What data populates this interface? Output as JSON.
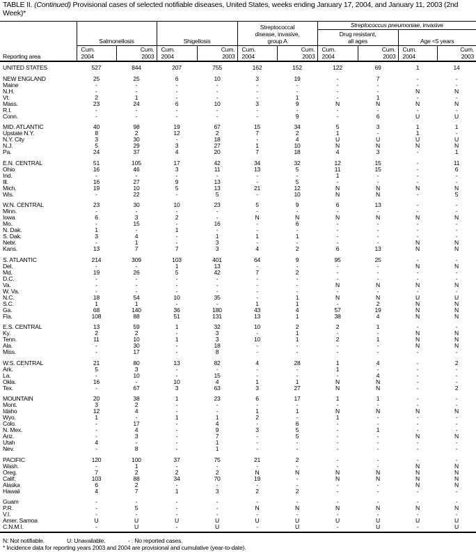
{
  "title": {
    "prefix": "TABLE II. ",
    "continued": "(Continued)",
    "text": " Provisional cases of selected notifiable diseases, United States, weeks ending January 17, 2004, and January 11, 2003 (2nd Week)*"
  },
  "header": {
    "reporting_area": "Reporting area",
    "salmonellosis": "Salmonellosis",
    "shigellosis": "Shigellosis",
    "strep_a": "Streptococcal disease, invasive, group A",
    "strep_pneumoniae": "Streptococcus pneumoniae",
    "strep_pneumoniae_suffix": ", invasive",
    "drug_resistant": "Drug resistant, all ages",
    "age_lt5": "Age <5 years",
    "cum_2004": "Cum. 2004",
    "cum_2003": "Cum. 2003"
  },
  "rows": [
    {
      "area": "UNITED STATES",
      "values": [
        "527",
        "844",
        "207",
        "755",
        "162",
        "152",
        "122",
        "69",
        "1",
        "14"
      ],
      "region": true
    },
    {
      "area": "NEW ENGLAND",
      "values": [
        "25",
        "25",
        "6",
        "10",
        "3",
        "19",
        "-",
        "7",
        "-",
        "-"
      ],
      "region": true
    },
    {
      "area": "Maine",
      "values": [
        "-",
        "-",
        "-",
        "-",
        "-",
        "-",
        "-",
        "-",
        "-",
        "-"
      ]
    },
    {
      "area": "N.H.",
      "values": [
        "-",
        "-",
        "-",
        "-",
        "-",
        "-",
        "-",
        "-",
        "N",
        "N"
      ]
    },
    {
      "area": "Vt.",
      "values": [
        "2",
        "1",
        "-",
        "-",
        "-",
        "1",
        "-",
        "1",
        "-",
        "-"
      ]
    },
    {
      "area": "Mass.",
      "values": [
        "23",
        "24",
        "6",
        "10",
        "3",
        "9",
        "N",
        "N",
        "N",
        "N"
      ]
    },
    {
      "area": "R.I.",
      "values": [
        "-",
        "-",
        "-",
        "-",
        "-",
        "-",
        "-",
        "-",
        "-",
        "-"
      ]
    },
    {
      "area": "Conn.",
      "values": [
        "-",
        "-",
        "-",
        "-",
        "-",
        "9",
        "-",
        "6",
        "U",
        "U"
      ]
    },
    {
      "area": "MID. ATLANTIC",
      "values": [
        "40",
        "98",
        "19",
        "67",
        "15",
        "34",
        "5",
        "3",
        "1",
        "1"
      ],
      "region": true
    },
    {
      "area": "Upstate N.Y.",
      "values": [
        "8",
        "2",
        "12",
        "2",
        "7",
        "2",
        "1",
        "-",
        "1",
        "-"
      ]
    },
    {
      "area": "N.Y. City",
      "values": [
        "3",
        "30",
        "-",
        "18",
        "-",
        "4",
        "U",
        "U",
        "U",
        "U"
      ]
    },
    {
      "area": "N.J.",
      "values": [
        "5",
        "29",
        "3",
        "27",
        "1",
        "10",
        "N",
        "N",
        "N",
        "N"
      ]
    },
    {
      "area": "Pa.",
      "values": [
        "24",
        "37",
        "4",
        "20",
        "7",
        "18",
        "4",
        "3",
        "-",
        "1"
      ]
    },
    {
      "area": "E.N. CENTRAL",
      "values": [
        "51",
        "105",
        "17",
        "42",
        "34",
        "32",
        "12",
        "15",
        "-",
        "11"
      ],
      "region": true
    },
    {
      "area": "Ohio",
      "values": [
        "16",
        "46",
        "3",
        "11",
        "13",
        "5",
        "11",
        "15",
        "-",
        "6"
      ]
    },
    {
      "area": "Ind.",
      "values": [
        "-",
        "-",
        "-",
        "-",
        "-",
        "-",
        "1",
        "-",
        "-",
        "-"
      ]
    },
    {
      "area": "Ill.",
      "values": [
        "16",
        "27",
        "9",
        "13",
        "-",
        "5",
        "-",
        "-",
        "-",
        "-"
      ]
    },
    {
      "area": "Mich.",
      "values": [
        "19",
        "10",
        "5",
        "13",
        "21",
        "12",
        "N",
        "N",
        "N",
        "N"
      ]
    },
    {
      "area": "Wis.",
      "values": [
        "-",
        "22",
        "-",
        "5",
        "-",
        "10",
        "N",
        "N",
        "-",
        "5"
      ]
    },
    {
      "area": "W.N. CENTRAL",
      "values": [
        "23",
        "30",
        "10",
        "23",
        "5",
        "9",
        "6",
        "13",
        "-",
        "-"
      ],
      "region": true
    },
    {
      "area": "Minn.",
      "values": [
        "-",
        "-",
        "-",
        "-",
        "-",
        "-",
        "-",
        "-",
        "-",
        "-"
      ]
    },
    {
      "area": "Iowa",
      "values": [
        "6",
        "3",
        "2",
        "-",
        "N",
        "N",
        "N",
        "N",
        "N",
        "N"
      ]
    },
    {
      "area": "Mo.",
      "values": [
        "-",
        "15",
        "-",
        "16",
        "-",
        "6",
        "-",
        "-",
        "-",
        "-"
      ]
    },
    {
      "area": "N. Dak.",
      "values": [
        "1",
        "-",
        "1",
        "-",
        "-",
        "-",
        "-",
        "-",
        "-",
        "-"
      ]
    },
    {
      "area": "S. Dak.",
      "values": [
        "3",
        "4",
        "-",
        "1",
        "1",
        "1",
        "-",
        "-",
        "-",
        "-"
      ]
    },
    {
      "area": "Nebr.",
      "values": [
        "-",
        "1",
        "-",
        "3",
        "-",
        "-",
        "-",
        "-",
        "N",
        "N"
      ]
    },
    {
      "area": "Kans.",
      "values": [
        "13",
        "7",
        "7",
        "3",
        "4",
        "2",
        "6",
        "13",
        "N",
        "N"
      ]
    },
    {
      "area": "S. ATLANTIC",
      "values": [
        "214",
        "309",
        "103",
        "401",
        "64",
        "9",
        "95",
        "25",
        "-",
        "-"
      ],
      "region": true
    },
    {
      "area": "Del.",
      "values": [
        "-",
        "-",
        "1",
        "13",
        "-",
        "-",
        "-",
        "-",
        "N",
        "N"
      ]
    },
    {
      "area": "Md.",
      "values": [
        "19",
        "26",
        "5",
        "42",
        "7",
        "2",
        "-",
        "-",
        "-",
        "-"
      ]
    },
    {
      "area": "D.C.",
      "values": [
        "-",
        "-",
        "-",
        "-",
        "-",
        "-",
        "-",
        "-",
        "-",
        "-"
      ]
    },
    {
      "area": "Va.",
      "values": [
        "-",
        "-",
        "-",
        "-",
        "-",
        "-",
        "N",
        "N",
        "N",
        "N"
      ]
    },
    {
      "area": "W. Va.",
      "values": [
        "-",
        "-",
        "-",
        "-",
        "-",
        "-",
        "-",
        "-",
        "-",
        "-"
      ]
    },
    {
      "area": "N.C.",
      "values": [
        "18",
        "54",
        "10",
        "35",
        "-",
        "1",
        "N",
        "N",
        "U",
        "U"
      ]
    },
    {
      "area": "S.C.",
      "values": [
        "1",
        "1",
        "-",
        "-",
        "1",
        "1",
        "-",
        "2",
        "N",
        "N"
      ]
    },
    {
      "area": "Ga.",
      "values": [
        "68",
        "140",
        "36",
        "180",
        "43",
        "4",
        "57",
        "19",
        "N",
        "N"
      ]
    },
    {
      "area": "Fla.",
      "values": [
        "108",
        "88",
        "51",
        "131",
        "13",
        "1",
        "38",
        "4",
        "N",
        "N"
      ]
    },
    {
      "area": "E.S. CENTRAL",
      "values": [
        "13",
        "59",
        "1",
        "32",
        "10",
        "2",
        "2",
        "1",
        "-",
        "-"
      ],
      "region": true
    },
    {
      "area": "Ky.",
      "values": [
        "2",
        "2",
        "-",
        "3",
        "-",
        "1",
        "-",
        "-",
        "N",
        "N"
      ]
    },
    {
      "area": "Tenn.",
      "values": [
        "11",
        "10",
        "1",
        "3",
        "10",
        "1",
        "2",
        "1",
        "N",
        "N"
      ]
    },
    {
      "area": "Ala.",
      "values": [
        "-",
        "30",
        "-",
        "18",
        "-",
        "-",
        "-",
        "-",
        "N",
        "N"
      ]
    },
    {
      "area": "Miss.",
      "values": [
        "-",
        "17",
        "-",
        "8",
        "-",
        "-",
        "-",
        "-",
        "-",
        "-"
      ]
    },
    {
      "area": "W.S. CENTRAL",
      "values": [
        "21",
        "80",
        "13",
        "82",
        "4",
        "28",
        "1",
        "4",
        "-",
        "2"
      ],
      "region": true
    },
    {
      "area": "Ark.",
      "values": [
        "5",
        "3",
        "-",
        "-",
        "-",
        "-",
        "1",
        "-",
        "-",
        "-"
      ]
    },
    {
      "area": "La.",
      "values": [
        "-",
        "10",
        "-",
        "15",
        "-",
        "-",
        "-",
        "4",
        "-",
        "-"
      ]
    },
    {
      "area": "Okla.",
      "values": [
        "16",
        "-",
        "10",
        "4",
        "1",
        "1",
        "N",
        "N",
        "-",
        "-"
      ]
    },
    {
      "area": "Tex.",
      "values": [
        "-",
        "67",
        "3",
        "63",
        "3",
        "27",
        "N",
        "N",
        "-",
        "2"
      ]
    },
    {
      "area": "MOUNTAIN",
      "values": [
        "20",
        "38",
        "1",
        "23",
        "6",
        "17",
        "1",
        "1",
        "-",
        "-"
      ],
      "region": true
    },
    {
      "area": "Mont.",
      "values": [
        "3",
        "2",
        "-",
        "-",
        "-",
        "-",
        "-",
        "-",
        "-",
        "-"
      ]
    },
    {
      "area": "Idaho",
      "values": [
        "12",
        "4",
        "-",
        "-",
        "1",
        "1",
        "N",
        "N",
        "N",
        "N"
      ]
    },
    {
      "area": "Wyo.",
      "values": [
        "1",
        "-",
        "1",
        "1",
        "2",
        "-",
        "1",
        "-",
        "-",
        "-"
      ]
    },
    {
      "area": "Colo.",
      "values": [
        "-",
        "17",
        "-",
        "4",
        "-",
        "6",
        "-",
        "-",
        "-",
        "-"
      ]
    },
    {
      "area": "N. Mex.",
      "values": [
        "-",
        "4",
        "-",
        "9",
        "3",
        "5",
        "-",
        "1",
        "-",
        "-"
      ]
    },
    {
      "area": "Ariz.",
      "values": [
        "-",
        "3",
        "-",
        "7",
        "-",
        "5",
        "-",
        "-",
        "N",
        "N"
      ]
    },
    {
      "area": "Utah",
      "values": [
        "4",
        "-",
        "-",
        "1",
        "-",
        "-",
        "-",
        "-",
        "-",
        "-"
      ]
    },
    {
      "area": "Nev.",
      "values": [
        "-",
        "8",
        "-",
        "1",
        "-",
        "-",
        "-",
        "-",
        "-",
        "-"
      ]
    },
    {
      "area": "PACIFIC",
      "values": [
        "120",
        "100",
        "37",
        "75",
        "21",
        "2",
        "-",
        "-",
        "-",
        "-"
      ],
      "region": true
    },
    {
      "area": "Wash.",
      "values": [
        "-",
        "1",
        "-",
        "-",
        "-",
        "-",
        "-",
        "-",
        "N",
        "N"
      ]
    },
    {
      "area": "Oreg.",
      "values": [
        "7",
        "2",
        "2",
        "2",
        "N",
        "N",
        "N",
        "N",
        "N",
        "N"
      ]
    },
    {
      "area": "Calif.",
      "values": [
        "103",
        "88",
        "34",
        "70",
        "19",
        "-",
        "N",
        "N",
        "N",
        "N"
      ]
    },
    {
      "area": "Alaska",
      "values": [
        "6",
        "2",
        "-",
        "-",
        "-",
        "-",
        "-",
        "-",
        "N",
        "N"
      ]
    },
    {
      "area": "Hawaii",
      "values": [
        "4",
        "7",
        "1",
        "3",
        "2",
        "2",
        "-",
        "-",
        "-",
        "-"
      ]
    },
    {
      "area": "Guam",
      "values": [
        "-",
        "-",
        "-",
        "-",
        "-",
        "-",
        "-",
        "-",
        "-",
        "-"
      ],
      "region": true
    },
    {
      "area": "P.R.",
      "values": [
        "-",
        "5",
        "-",
        "-",
        "N",
        "N",
        "N",
        "N",
        "N",
        "N"
      ]
    },
    {
      "area": "V.I.",
      "values": [
        "-",
        "-",
        "-",
        "-",
        "-",
        "-",
        "-",
        "-",
        "-",
        "-"
      ]
    },
    {
      "area": "Amer. Samoa",
      "values": [
        "U",
        "U",
        "U",
        "U",
        "U",
        "U",
        "U",
        "U",
        "U",
        "U"
      ]
    },
    {
      "area": "C.N.M.I.",
      "values": [
        "-",
        "U",
        "-",
        "U",
        "-",
        "U",
        "-",
        "U",
        "-",
        "U"
      ]
    }
  ],
  "footer": {
    "n": "N: Not notifiable.",
    "u": "U: Unavailable.",
    "dash": "- : No reported cases.",
    "note": "* Incidence data for reporting years 2003 and 2004 are provisional and cumulative (year-to-date)."
  }
}
